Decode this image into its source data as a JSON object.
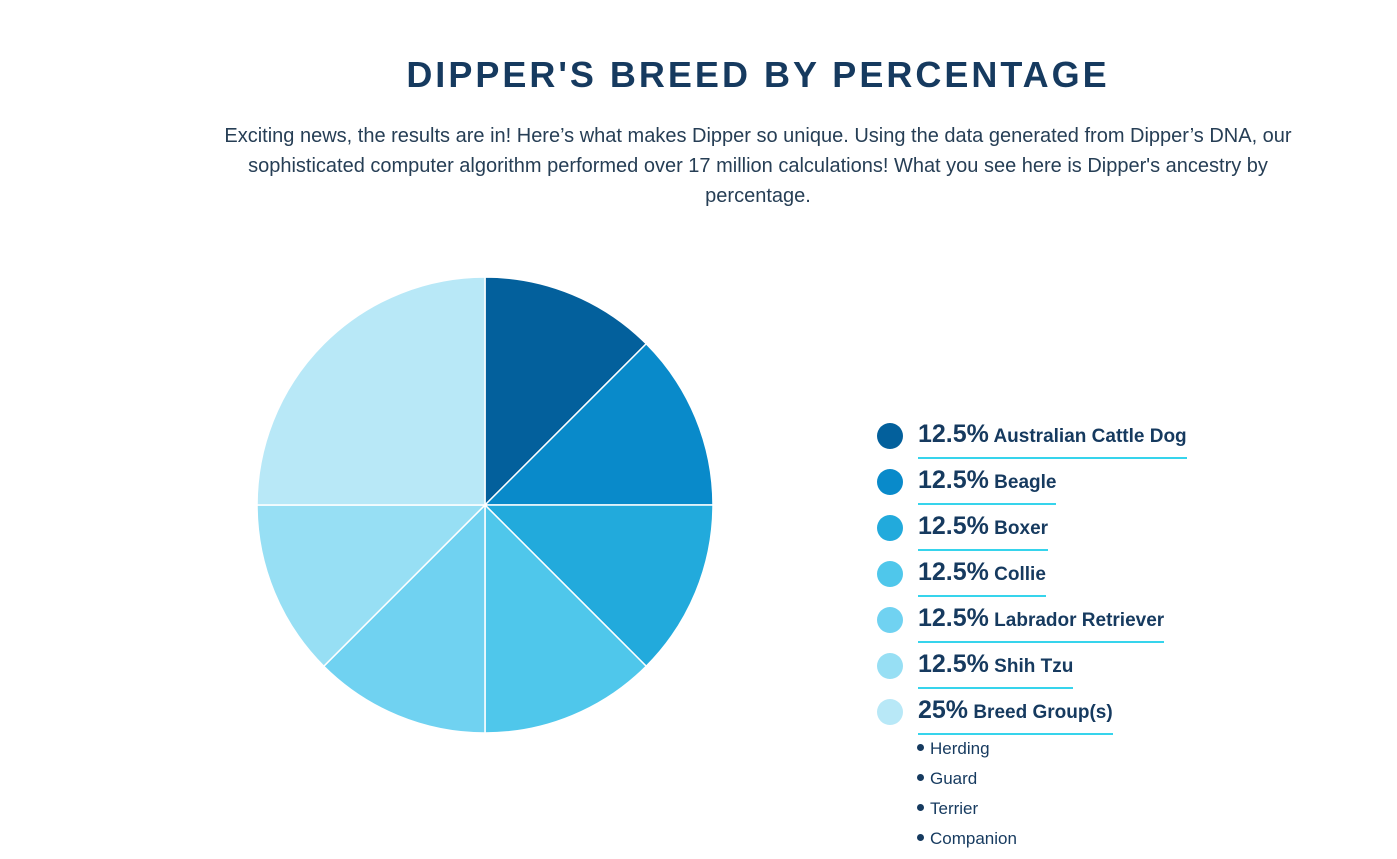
{
  "header": {
    "title": "DIPPER'S BREED BY PERCENTAGE",
    "intro": "Exciting news, the results are in! Here’s what makes Dipper so unique. Using the data generated from Dipper’s DNA, our sophisticated computer algorithm performed over 17 million calculations! What you see here is Dipper's ancestry by percentage."
  },
  "chart_data": {
    "type": "pie",
    "title": "DIPPER'S BREED BY PERCENTAGE",
    "categories": [
      "Australian Cattle Dog",
      "Beagle",
      "Boxer",
      "Collie",
      "Labrador Retriever",
      "Shih Tzu",
      "Breed Group(s)"
    ],
    "values": [
      12.5,
      12.5,
      12.5,
      12.5,
      12.5,
      12.5,
      25
    ],
    "labels": [
      "12.5%",
      "12.5%",
      "12.5%",
      "12.5%",
      "12.5%",
      "12.5%",
      "25%"
    ],
    "colors": [
      "#03609c",
      "#098aca",
      "#22aadc",
      "#4fc7eb",
      "#70d2f1",
      "#97dff4",
      "#b8e8f7"
    ],
    "legend_position": "right",
    "start_angle": "12 o'clock, clockwise"
  },
  "breed_groups": [
    "Herding",
    "Guard",
    "Terrier",
    "Companion"
  ]
}
